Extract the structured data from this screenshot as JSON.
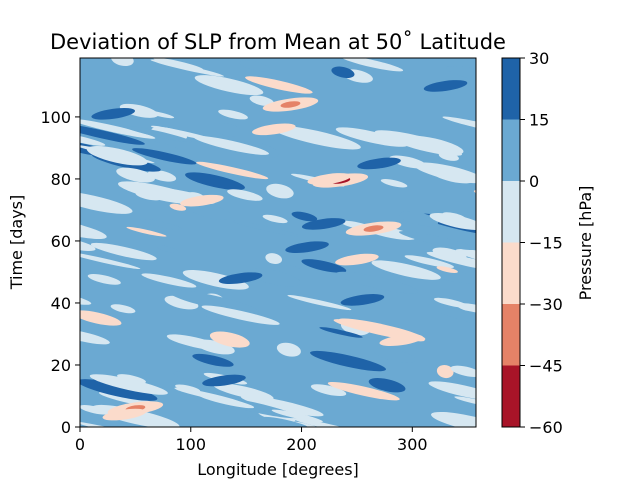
{
  "chart_data": {
    "type": "heatmap",
    "title": "Deviation of SLP from Mean at 50$^{\\circ}$ Latitude",
    "title_display": "Deviation of SLP from Mean at 50˚ Latitude",
    "xlabel": "Longitude [degrees]",
    "ylabel": "Time [days]",
    "xlim": [
      0,
      357.5
    ],
    "ylim": [
      0,
      119
    ],
    "xticks": [
      "0",
      "100",
      "200",
      "300"
    ],
    "xtick_values": [
      0,
      100,
      200,
      300
    ],
    "yticks": [
      "0",
      "20",
      "40",
      "60",
      "80",
      "100"
    ],
    "ytick_values": [
      0,
      20,
      40,
      60,
      80,
      100
    ],
    "colorbar": {
      "label": "Pressure [hPa]",
      "levels": [
        -60,
        -45,
        -30,
        -15,
        0,
        15,
        30
      ],
      "tick_labels": [
        "−60",
        "−45",
        "−30",
        "−15",
        "0",
        "15",
        "30"
      ],
      "colors": [
        "#a81428",
        "#e58267",
        "#fbdbcb",
        "#d6e7f1",
        "#6ba9d2",
        "#1f63a8"
      ]
    },
    "features": [
      {
        "type": "band_low",
        "lon": 235,
        "day": 79.5,
        "value": -50
      },
      {
        "type": "band_low",
        "lon": 190,
        "day": 104,
        "value": -35
      },
      {
        "type": "band_low",
        "lon": 50,
        "day": 6,
        "value": -35
      },
      {
        "type": "band_low",
        "lon": 265,
        "day": 64,
        "value": -35
      },
      {
        "type": "band_low",
        "lon": 225,
        "day": 80,
        "value": -22
      },
      {
        "type": "band_low",
        "lon": 40,
        "day": 4,
        "value": -22
      },
      {
        "type": "band_low",
        "lon": 175,
        "day": 96,
        "value": -22
      },
      {
        "type": "band_low",
        "lon": 290,
        "day": 28,
        "value": -22
      },
      {
        "type": "band_low",
        "lon": 110,
        "day": 73,
        "value": -22
      },
      {
        "type": "band_low",
        "lon": 250,
        "day": 54,
        "value": -22
      },
      {
        "type": "band_high",
        "lon": 220,
        "day": 65.5,
        "value": 25
      },
      {
        "type": "band_high",
        "lon": 205,
        "day": 58,
        "value": 22
      },
      {
        "type": "band_high",
        "lon": 255,
        "day": 41,
        "value": 22
      },
      {
        "type": "band_high",
        "lon": 30,
        "day": 101,
        "value": 22
      },
      {
        "type": "band_high",
        "lon": 130,
        "day": 15,
        "value": 22
      },
      {
        "type": "band_high",
        "lon": 145,
        "day": 48,
        "value": 22
      },
      {
        "type": "band_high",
        "lon": 270,
        "day": 85,
        "value": 22
      },
      {
        "type": "band_high",
        "lon": 330,
        "day": 110,
        "value": 22
      }
    ]
  }
}
